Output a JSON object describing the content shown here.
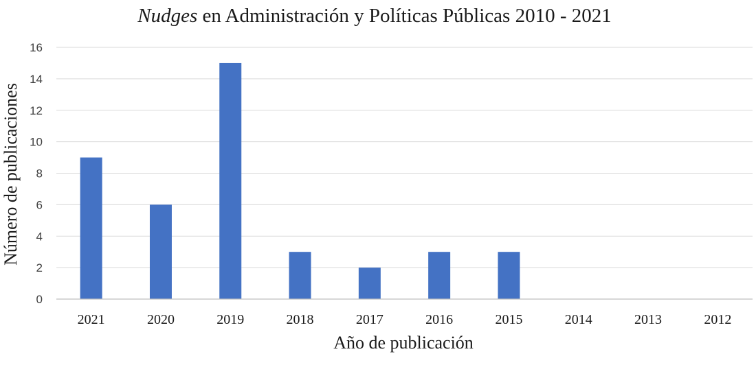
{
  "chart_data": {
    "type": "bar",
    "title": {
      "italic": "Nudges",
      "rest": " en Administración y Políticas Públicas 2010 - 2021"
    },
    "xlabel": "Año de publicación",
    "ylabel": "Número de publicaciones",
    "categories": [
      "2021",
      "2020",
      "2019",
      "2018",
      "2017",
      "2016",
      "2015",
      "2014",
      "2013",
      "2012"
    ],
    "values": [
      9,
      6,
      15,
      3,
      2,
      3,
      3,
      0,
      0,
      0
    ],
    "ylim": [
      0,
      16
    ],
    "yticks": [
      0,
      2,
      4,
      6,
      8,
      10,
      12,
      14,
      16
    ],
    "grid": true,
    "legend": "none",
    "bar_color": "#4472C4"
  }
}
